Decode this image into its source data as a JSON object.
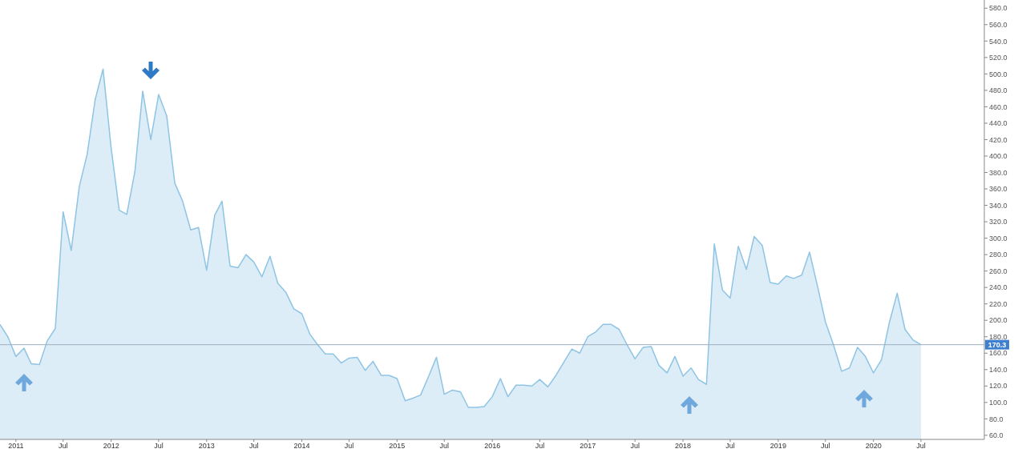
{
  "chart_data": {
    "type": "area",
    "x": [
      "2010-11",
      "2010-12",
      "2011-01",
      "2011-02",
      "2011-03",
      "2011-04",
      "2011-05",
      "2011-06",
      "2011-07",
      "2011-08",
      "2011-09",
      "2011-10",
      "2011-11",
      "2011-12",
      "2012-01",
      "2012-02",
      "2012-03",
      "2012-04",
      "2012-05",
      "2012-06",
      "2012-07",
      "2012-08",
      "2012-09",
      "2012-10",
      "2012-11",
      "2012-12",
      "2013-01",
      "2013-02",
      "2013-03",
      "2013-04",
      "2013-05",
      "2013-06",
      "2013-07",
      "2013-08",
      "2013-09",
      "2013-10",
      "2013-11",
      "2013-12",
      "2014-01",
      "2014-02",
      "2014-03",
      "2014-04",
      "2014-05",
      "2014-06",
      "2014-07",
      "2014-08",
      "2014-09",
      "2014-10",
      "2014-11",
      "2014-12",
      "2015-01",
      "2015-02",
      "2015-03",
      "2015-04",
      "2015-05",
      "2015-06",
      "2015-07",
      "2015-08",
      "2015-09",
      "2015-10",
      "2015-11",
      "2015-12",
      "2016-01",
      "2016-02",
      "2016-03",
      "2016-04",
      "2016-05",
      "2016-06",
      "2016-07",
      "2016-08",
      "2016-09",
      "2016-10",
      "2016-11",
      "2016-12",
      "2017-01",
      "2017-02",
      "2017-03",
      "2017-04",
      "2017-05",
      "2017-06",
      "2017-07",
      "2017-08",
      "2017-09",
      "2017-10",
      "2017-11",
      "2017-12",
      "2018-01",
      "2018-02",
      "2018-03",
      "2018-04",
      "2018-05",
      "2018-06",
      "2018-07",
      "2018-08",
      "2018-09",
      "2018-10",
      "2018-11",
      "2018-12",
      "2019-01",
      "2019-02",
      "2019-03",
      "2019-04",
      "2019-05",
      "2019-06",
      "2019-07",
      "2019-08",
      "2019-09",
      "2019-10",
      "2019-11",
      "2019-12",
      "2020-01",
      "2020-02",
      "2020-03",
      "2020-04",
      "2020-05",
      "2020-06",
      "2020-07"
    ],
    "series": [
      {
        "color": "#8ec4e4",
        "values": [
          195,
          180,
          156,
          166,
          147,
          146,
          175,
          190,
          332,
          285,
          363,
          402,
          469,
          506,
          410,
          334,
          329,
          381,
          479,
          420,
          475,
          449,
          367,
          345,
          310,
          313,
          261,
          328,
          345,
          266,
          264,
          280,
          271,
          253,
          278,
          245,
          234,
          214,
          208,
          183,
          171,
          159,
          159,
          148,
          154,
          155,
          139,
          150,
          133,
          133,
          129,
          102,
          105,
          109,
          131,
          155,
          110,
          115,
          113,
          94,
          94,
          95,
          107,
          129,
          107,
          121,
          121,
          120,
          128,
          119,
          133,
          149,
          165,
          160,
          180,
          186,
          195,
          195,
          189,
          170,
          153,
          167,
          168,
          145,
          136,
          156,
          132,
          142,
          128,
          122,
          293,
          237,
          227,
          290,
          262,
          302,
          291,
          246,
          244,
          254,
          251,
          255,
          283,
          241,
          198,
          170,
          138,
          142,
          167,
          156,
          136,
          152,
          196,
          233,
          189,
          176,
          170.3
        ]
      }
    ],
    "xlim": [
      "2010-11",
      "2021-03"
    ],
    "xticks": [
      {
        "value": "2011-01",
        "label": "2011"
      },
      {
        "value": "2011-07",
        "label": "Jul"
      },
      {
        "value": "2012-01",
        "label": "2012"
      },
      {
        "value": "2012-07",
        "label": "Jul"
      },
      {
        "value": "2013-01",
        "label": "2013"
      },
      {
        "value": "2013-07",
        "label": "Jul"
      },
      {
        "value": "2014-01",
        "label": "2014"
      },
      {
        "value": "2014-07",
        "label": "Jul"
      },
      {
        "value": "2015-01",
        "label": "2015"
      },
      {
        "value": "2015-07",
        "label": "Jul"
      },
      {
        "value": "2016-01",
        "label": "2016"
      },
      {
        "value": "2016-07",
        "label": "Jul"
      },
      {
        "value": "2017-01",
        "label": "2017"
      },
      {
        "value": "2017-07",
        "label": "Jul"
      },
      {
        "value": "2018-01",
        "label": "2018"
      },
      {
        "value": "2018-07",
        "label": "Jul"
      },
      {
        "value": "2019-01",
        "label": "2019"
      },
      {
        "value": "2019-07",
        "label": "Jul"
      },
      {
        "value": "2020-01",
        "label": "2020"
      },
      {
        "value": "2020-07",
        "label": "Jul"
      }
    ],
    "ylim": [
      55,
      590
    ],
    "yticks": [
      {
        "value": 60,
        "label": "60.0"
      },
      {
        "value": 80,
        "label": "80.0"
      },
      {
        "value": 100,
        "label": "100.0"
      },
      {
        "value": 120,
        "label": "120.0"
      },
      {
        "value": 140,
        "label": "140.0"
      },
      {
        "value": 160,
        "label": "160.0"
      },
      {
        "value": 180,
        "label": "180.0"
      },
      {
        "value": 200,
        "label": "200.0"
      },
      {
        "value": 220,
        "label": "220.0"
      },
      {
        "value": 240,
        "label": "240.0"
      },
      {
        "value": 260,
        "label": "260.0"
      },
      {
        "value": 280,
        "label": "280.0"
      },
      {
        "value": 300,
        "label": "300.0"
      },
      {
        "value": 320,
        "label": "320.0"
      },
      {
        "value": 340,
        "label": "340.0"
      },
      {
        "value": 360,
        "label": "360.0"
      },
      {
        "value": 380,
        "label": "380.0"
      },
      {
        "value": 400,
        "label": "400.0"
      },
      {
        "value": 420,
        "label": "420.0"
      },
      {
        "value": 440,
        "label": "440.0"
      },
      {
        "value": 460,
        "label": "460.0"
      },
      {
        "value": 480,
        "label": "480.0"
      },
      {
        "value": 500,
        "label": "500.0"
      },
      {
        "value": 520,
        "label": "520.0"
      },
      {
        "value": 540,
        "label": "540.0"
      },
      {
        "value": 560,
        "label": "560.0"
      },
      {
        "value": 580,
        "label": "580.0"
      }
    ],
    "ref_lines": [
      {
        "axis": "y",
        "value": 170.3,
        "label": "170.3",
        "color": "#9fb0c0"
      }
    ],
    "grid": false,
    "legend": false,
    "marker": "none"
  }
}
